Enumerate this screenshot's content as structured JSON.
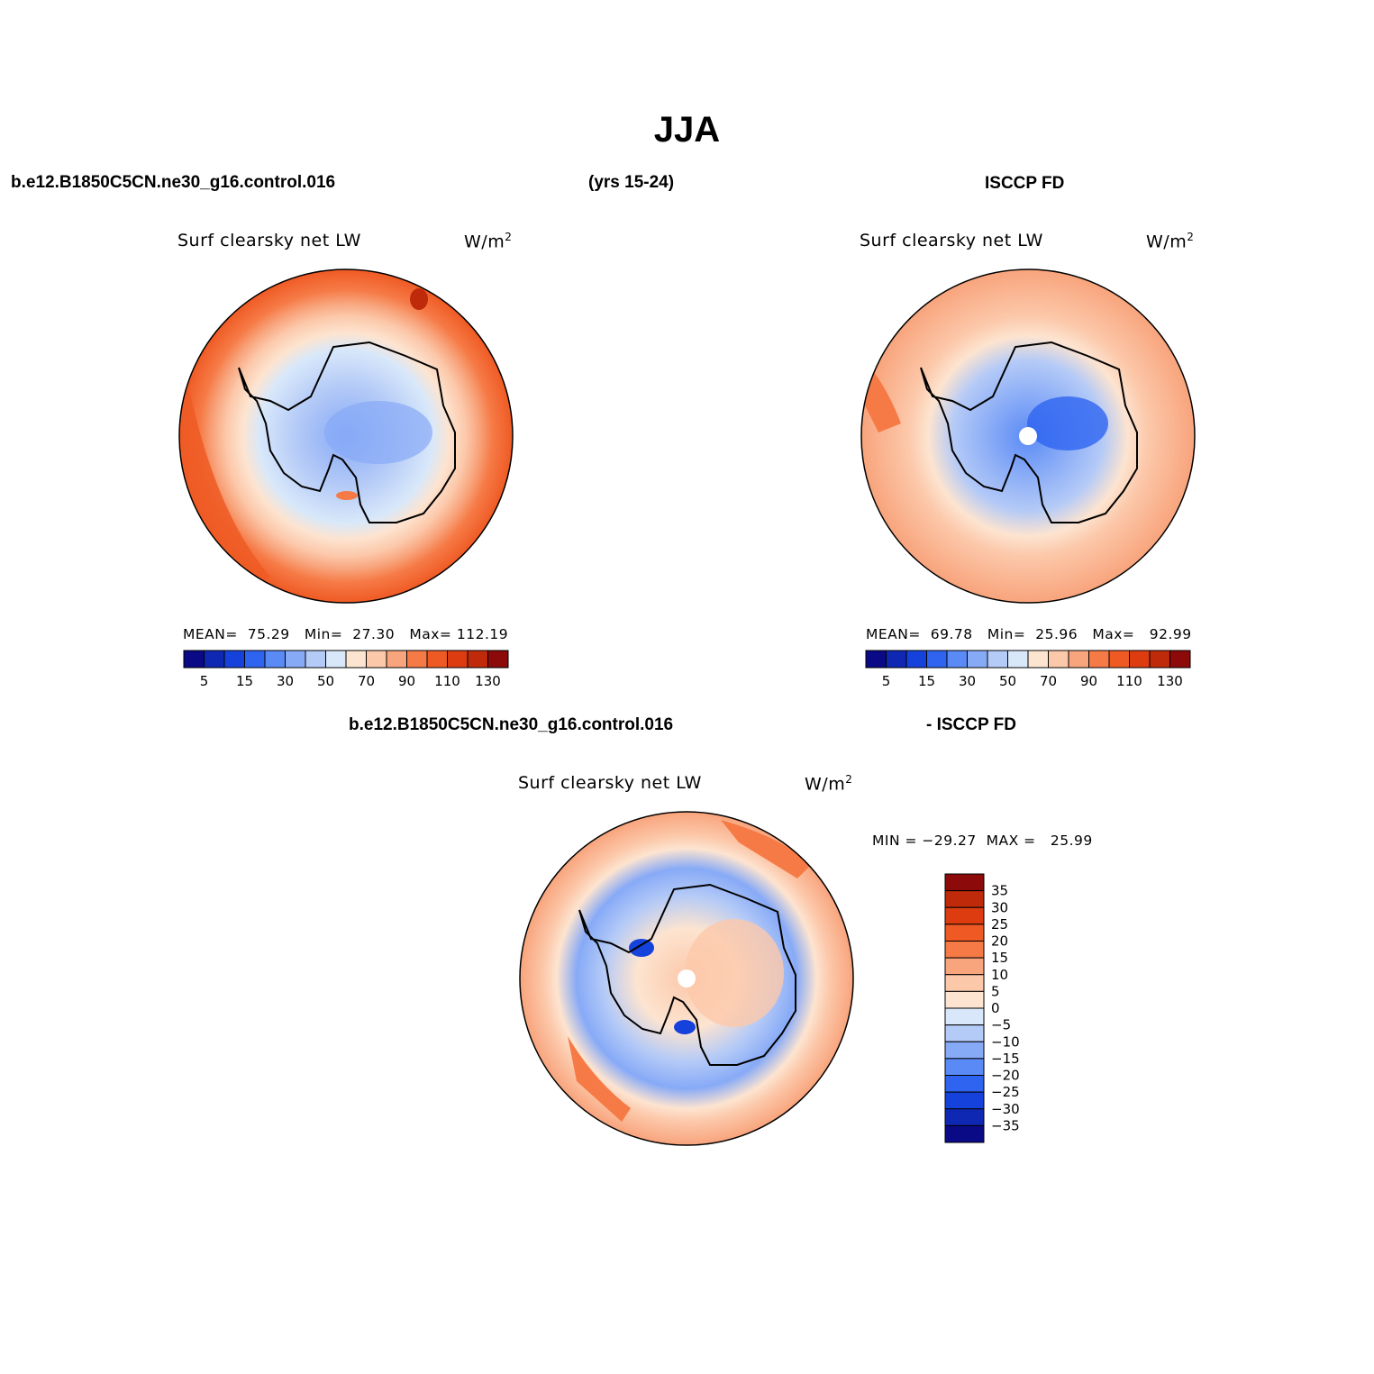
{
  "figure": {
    "title": "JJA",
    "case_name": "b.e12.B1850C5CN.ne30_g16.control.016",
    "years": "(yrs 15-24)",
    "obs_name": "ISCCP FD",
    "diff_case_name": "b.e12.B1850C5CN.ne30_g16.control.016",
    "diff_obs_name": "- ISCCP FD"
  },
  "panels": [
    {
      "id": "model",
      "variable": "Surf clearsky net LW",
      "units": "W/m",
      "units_exp": "2",
      "mean_label": "MEAN=",
      "mean": "75.29",
      "min_label": "Min=",
      "min": "27.30",
      "max_label": "Max=",
      "max": "112.19"
    },
    {
      "id": "obs",
      "variable": "Surf clearsky net LW",
      "units": "W/m",
      "units_exp": "2",
      "mean_label": "MEAN=",
      "mean": "69.78",
      "min_label": "Min=",
      "min": "25.96",
      "max_label": "Max=",
      "max": "92.99"
    },
    {
      "id": "diff",
      "variable": "Surf clearsky net LW",
      "units": "W/m",
      "units_exp": "2",
      "minmax_text": "MIN = −29.27  MAX =   25.99"
    }
  ],
  "colorbar_abs": {
    "colors": [
      "#0a0a87",
      "#0f28b4",
      "#1642dc",
      "#2e64f0",
      "#5a8af5",
      "#87aaf7",
      "#b4caf7",
      "#d8e8fa",
      "#fde4d0",
      "#fcc8aa",
      "#f8a47c",
      "#f67a46",
      "#ef5a24",
      "#dc3c10",
      "#be2a0a",
      "#8c0a0a"
    ],
    "labels": [
      "5",
      "15",
      "30",
      "50",
      "70",
      "90",
      "110",
      "130"
    ]
  },
  "colorbar_diff": {
    "colors": [
      "#8c0a0a",
      "#be2a0a",
      "#dc3c10",
      "#ef5a24",
      "#f67a46",
      "#f8a47c",
      "#fcc8aa",
      "#fde4d0",
      "#d8e8fa",
      "#b4caf7",
      "#87aaf7",
      "#5a8af5",
      "#2e64f0",
      "#1642dc",
      "#0f28b4",
      "#0a0a87"
    ],
    "labels": [
      "35",
      "30",
      "25",
      "20",
      "15",
      "10",
      "5",
      "0",
      "−5",
      "−10",
      "−15",
      "−20",
      "−25",
      "−30",
      "−35"
    ]
  }
}
